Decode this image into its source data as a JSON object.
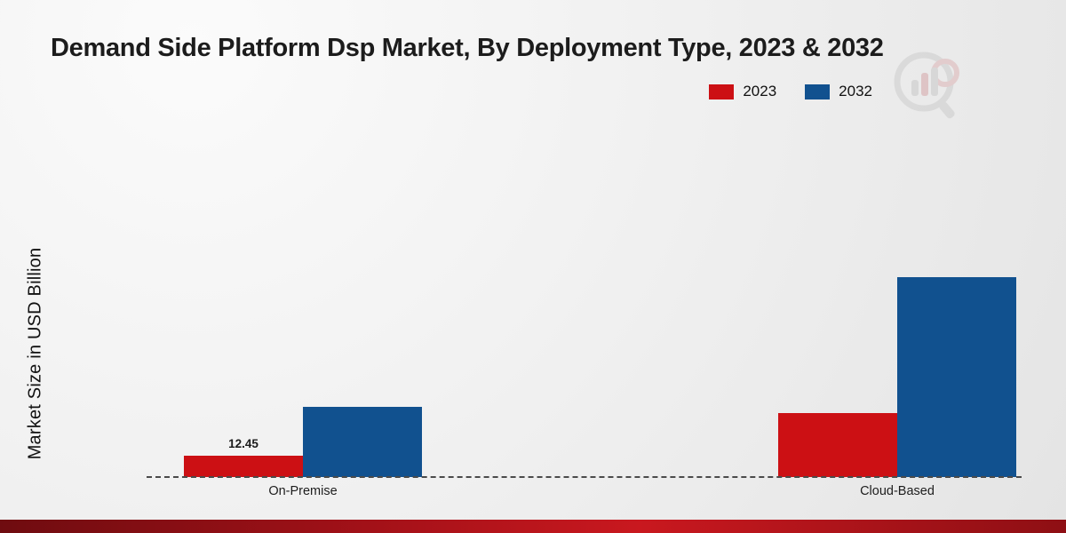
{
  "title": "Demand Side Platform Dsp Market, By Deployment Type, 2023 & 2032",
  "ylabel": "Market Size in USD Billion",
  "legend": [
    {
      "label": "2023",
      "color": "#cc1014"
    },
    {
      "label": "2032",
      "color": "#11518f"
    }
  ],
  "chart_data": {
    "type": "bar",
    "title": "Demand Side Platform Dsp Market, By Deployment Type, 2023 & 2032",
    "categories": [
      "On-Premise",
      "Cloud-Based"
    ],
    "series": [
      {
        "name": "2023",
        "color": "#cc1014",
        "values": [
          12.45,
          37.2
        ],
        "labels": [
          "12.45",
          null
        ]
      },
      {
        "name": "2032",
        "color": "#11518f",
        "values": [
          41.0,
          116.5
        ],
        "labels": [
          null,
          null
        ]
      }
    ],
    "xlabel": "",
    "ylabel": "Market Size in USD Billion",
    "ylim": [
      0,
      130
    ],
    "grid": false,
    "baseline_style": "dashed",
    "legend_position": "top-right",
    "data_label_note": "only On-Premise 2023 bar is labeled (12.45)"
  }
}
